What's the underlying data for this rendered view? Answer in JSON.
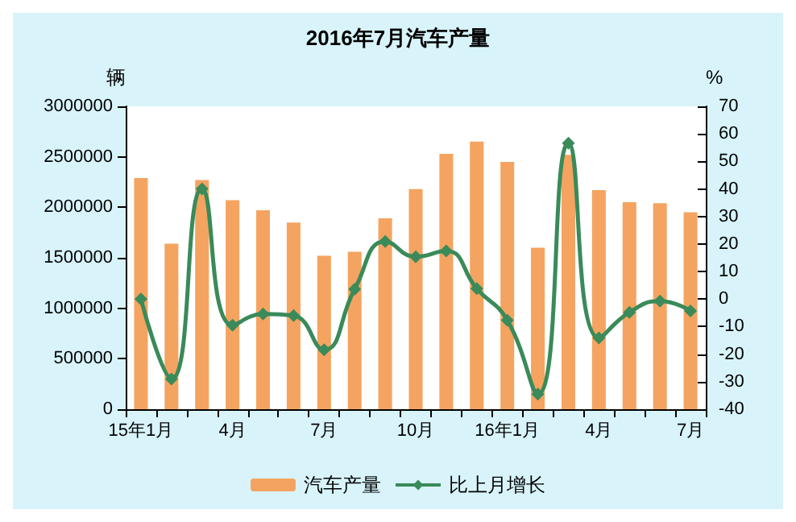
{
  "chart_data": {
    "type": "bar",
    "title": "2016年7月汽车产量",
    "ylabel": "辆",
    "y2label": "%",
    "categories": [
      "15年1月",
      null,
      null,
      "4月",
      null,
      null,
      "7月",
      null,
      null,
      "10月",
      null,
      null,
      "16年1月",
      null,
      null,
      "4月",
      null,
      null,
      "7月"
    ],
    "series": [
      {
        "name": "汽车产量",
        "color": "#f4a460",
        "values": [
          2290000,
          1640000,
          2270000,
          2070000,
          1970000,
          1850000,
          1520000,
          1560000,
          1890000,
          2180000,
          2530000,
          2650000,
          2450000,
          1600000,
          2520000,
          2170000,
          2050000,
          2040000,
          1950000
        ]
      },
      {
        "name": "比上月增长",
        "type": "line",
        "axis": "y2",
        "color": "#3a8a5a",
        "marker": "diamond",
        "values": [
          0,
          -29,
          40,
          -9.5,
          -5.4,
          -6,
          -18.4,
          3.6,
          20.9,
          15.4,
          17.5,
          3.8,
          -7.7,
          -34.5,
          56.6,
          -14.1,
          -4.8,
          -0.7,
          -4.3
        ]
      }
    ],
    "ylim": [
      0,
      3000000
    ],
    "yticks": [
      0,
      500000,
      1000000,
      1500000,
      2000000,
      2500000,
      3000000
    ],
    "y2lim": [
      -40,
      70
    ],
    "y2ticks": [
      -40,
      -30,
      -20,
      -10,
      0,
      10,
      20,
      30,
      40,
      50,
      60,
      70
    ],
    "grid": false,
    "legend": "bottom"
  }
}
